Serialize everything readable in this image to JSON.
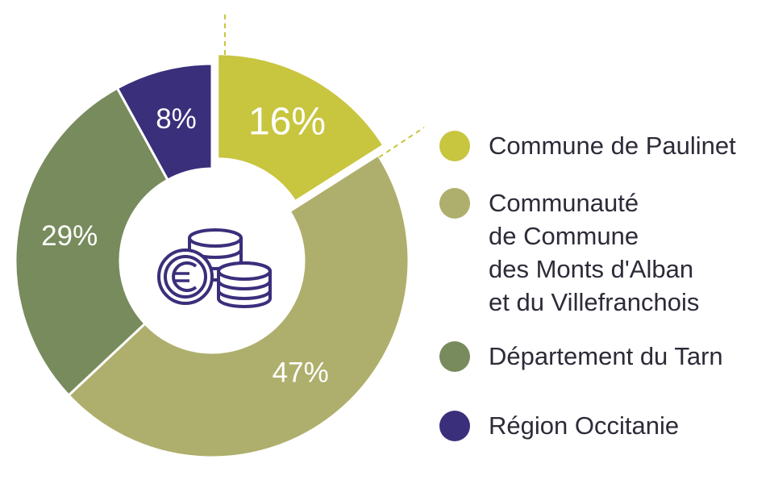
{
  "chart_data": {
    "type": "pie",
    "categories": [
      "Commune de Paulinet",
      "Communauté\nde Commune\ndes Monts d'Alban\net du Villefranchois",
      "Département du Tarn",
      "Région Occitanie"
    ],
    "values": [
      16,
      47,
      29,
      8
    ],
    "labels": [
      "16%",
      "47%",
      "29%",
      "8%"
    ],
    "colors": [
      "#c8c53f",
      "#aeaf6c",
      "#788b5d",
      "#3a2f7b"
    ],
    "title": "",
    "center_icon": "euro-coins-icon",
    "legend_position": "right"
  }
}
